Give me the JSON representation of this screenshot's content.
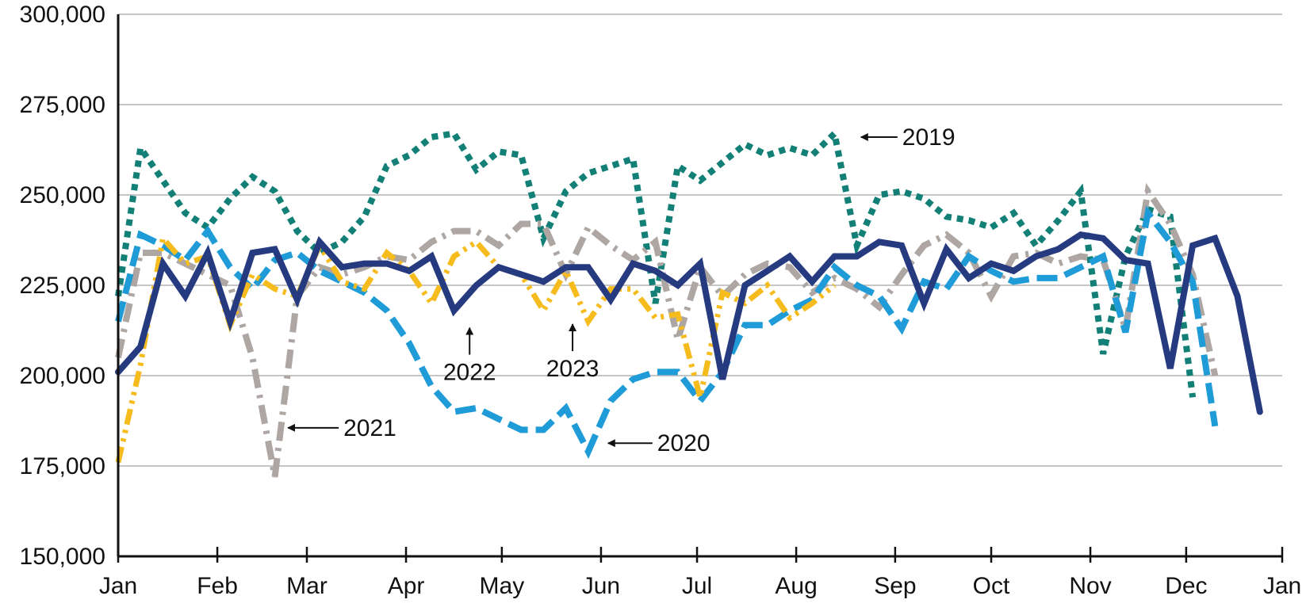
{
  "chart_data": {
    "type": "line",
    "title": "",
    "xlabel": "",
    "ylabel": "",
    "ylim": [
      150000,
      300000
    ],
    "xlim": [
      0,
      52
    ],
    "grid": true,
    "y_ticks": [
      150000,
      175000,
      200000,
      225000,
      250000,
      275000,
      300000
    ],
    "y_tick_labels": [
      "150,000",
      "175,000",
      "200,000",
      "225,000",
      "250,000",
      "275,000",
      "300,000"
    ],
    "month_ticks": [
      0,
      4.43,
      8.43,
      12.86,
      17.14,
      21.57,
      25.86,
      30.29,
      34.71,
      39.0,
      43.43,
      47.71,
      52.0
    ],
    "month_labels": [
      "Jan",
      "Feb",
      "Mar",
      "Apr",
      "May",
      "Jun",
      "Jul",
      "Aug",
      "Sep",
      "Oct",
      "Nov",
      "Dec",
      "Jan"
    ],
    "series": [
      {
        "name": "2019",
        "color": "#128076",
        "x": [
          0,
          1,
          2,
          3,
          4,
          5,
          6,
          7,
          8,
          9,
          10,
          11,
          12,
          13,
          14,
          15,
          16,
          17,
          18,
          19,
          20,
          21,
          22,
          23,
          24,
          25,
          26,
          27,
          28,
          29,
          30,
          31,
          32,
          33,
          34,
          35,
          36,
          37,
          38,
          39,
          40,
          41,
          42,
          43,
          44,
          45,
          46,
          47,
          48,
          49,
          50,
          51,
          52
        ],
        "values": [
          222000,
          263000,
          254000,
          245000,
          241000,
          249000,
          255000,
          251000,
          240000,
          234000,
          237000,
          244000,
          258000,
          261000,
          266000,
          267000,
          257000,
          262000,
          261000,
          238000,
          251000,
          256000,
          258000,
          260000,
          220000,
          258000,
          254000,
          259000,
          264000,
          261000,
          263000,
          261000,
          267000,
          236000,
          250000,
          251000,
          249000,
          244000,
          243000,
          241000,
          245000,
          236000,
          243000,
          251000,
          206000,
          233000,
          246000,
          244000,
          194000,
          null,
          null,
          null,
          null
        ]
      },
      {
        "name": "2020",
        "color": "#1f9bd7",
        "x": [
          0,
          1,
          2,
          3,
          4,
          5,
          6,
          7,
          8,
          9,
          10,
          11,
          12,
          13,
          14,
          15,
          16,
          17,
          18,
          19,
          20,
          21,
          22,
          23,
          24,
          25,
          26,
          27,
          28,
          29,
          30,
          31,
          32,
          33,
          34,
          35,
          36,
          37,
          38,
          39,
          40,
          41,
          42,
          43,
          44,
          45,
          46,
          47,
          48,
          49,
          50,
          51,
          52
        ],
        "values": [
          215000,
          239000,
          236000,
          232000,
          240000,
          230000,
          224000,
          232000,
          234000,
          229000,
          226000,
          223000,
          218000,
          209000,
          197000,
          190000,
          191000,
          188000,
          185000,
          185000,
          191000,
          179000,
          193000,
          199000,
          201000,
          201000,
          193000,
          201000,
          214000,
          214000,
          218000,
          221000,
          230000,
          225000,
          222000,
          213000,
          226000,
          224000,
          233000,
          229000,
          226000,
          227000,
          227000,
          230000,
          233000,
          212000,
          245000,
          237000,
          226000,
          186000,
          null,
          null,
          null
        ]
      },
      {
        "name": "2021",
        "color": "#ada6a2",
        "x": [
          0,
          1,
          2,
          3,
          4,
          5,
          6,
          7,
          8,
          9,
          10,
          11,
          12,
          13,
          14,
          15,
          16,
          17,
          18,
          19,
          20,
          21,
          22,
          23,
          24,
          25,
          26,
          27,
          28,
          29,
          30,
          31,
          32,
          33,
          34,
          35,
          36,
          37,
          38,
          39,
          40,
          41,
          42,
          43,
          44,
          45,
          46,
          47,
          48,
          49,
          50,
          51,
          52
        ],
        "values": [
          205000,
          234000,
          234000,
          231000,
          228000,
          225000,
          205000,
          172000,
          222000,
          230000,
          228000,
          230000,
          233000,
          232000,
          237000,
          240000,
          240000,
          236000,
          242000,
          242000,
          228000,
          241000,
          236000,
          232000,
          237000,
          210000,
          230000,
          222000,
          228000,
          231000,
          230000,
          223000,
          227000,
          224000,
          219000,
          228000,
          236000,
          239000,
          234000,
          222000,
          233000,
          234000,
          231000,
          233000,
          232000,
          213000,
          251000,
          242000,
          228000,
          200000,
          null,
          null,
          null
        ]
      },
      {
        "name": "2022",
        "color": "#263a80",
        "x": [
          0,
          1,
          2,
          3,
          4,
          5,
          6,
          7,
          8,
          9,
          10,
          11,
          12,
          13,
          14,
          15,
          16,
          17,
          18,
          19,
          20,
          21,
          22,
          23,
          24,
          25,
          26,
          27,
          28,
          29,
          30,
          31,
          32,
          33,
          34,
          35,
          36,
          37,
          38,
          39,
          40,
          41,
          42,
          43,
          44,
          45,
          46,
          47,
          48,
          49,
          50,
          51,
          52
        ],
        "values": [
          201000,
          208000,
          231000,
          222000,
          234000,
          215000,
          234000,
          235000,
          221000,
          237000,
          230000,
          231000,
          231000,
          229000,
          233000,
          218000,
          225000,
          230000,
          228000,
          226000,
          230000,
          230000,
          221000,
          231000,
          229000,
          225000,
          231000,
          199000,
          225000,
          229000,
          233000,
          226000,
          233000,
          233000,
          237000,
          236000,
          220000,
          235000,
          227000,
          231000,
          229000,
          233000,
          235000,
          239000,
          238000,
          232000,
          231000,
          202000,
          236000,
          238000,
          222000,
          190000,
          null
        ]
      },
      {
        "name": "2023",
        "color": "#f6bc1e",
        "x": [
          0,
          1,
          2,
          3,
          4,
          5,
          6,
          7,
          8,
          9,
          10,
          11,
          12,
          13,
          14,
          15,
          16,
          17,
          18,
          19,
          20,
          21,
          22,
          23,
          24,
          25,
          26,
          27,
          28,
          29,
          30,
          31,
          32,
          33,
          34,
          35,
          36,
          37,
          38,
          39,
          40,
          41,
          42,
          43,
          44,
          45,
          46,
          47,
          48,
          49,
          50,
          51,
          52
        ],
        "values": [
          176000,
          203000,
          238000,
          231000,
          233000,
          214000,
          228000,
          224000,
          222000,
          236000,
          226000,
          224000,
          234000,
          229000,
          220000,
          233000,
          237000,
          230000,
          228000,
          218000,
          229000,
          215000,
          224000,
          224000,
          216000,
          217000,
          194000,
          223000,
          220000,
          225000,
          216000,
          220000,
          225000,
          null,
          null,
          null,
          null,
          null,
          null,
          null,
          null,
          null,
          null,
          null,
          null,
          null,
          null,
          null,
          null,
          null,
          null,
          null,
          null
        ]
      }
    ],
    "annotations": [
      {
        "text": "2019",
        "series": "2019",
        "x": 32.9,
        "y": 266000
      },
      {
        "text": "2020",
        "series": "2020",
        "x": 21.6,
        "y": 180000
      },
      {
        "text": "2021",
        "series": "2021",
        "x": 7.3,
        "y": 186000
      },
      {
        "text": "2022",
        "series": "2022",
        "x": 15.7,
        "y": 215000
      },
      {
        "text": "2023",
        "series": "2023",
        "x": 20.3,
        "y": 216000
      }
    ]
  }
}
